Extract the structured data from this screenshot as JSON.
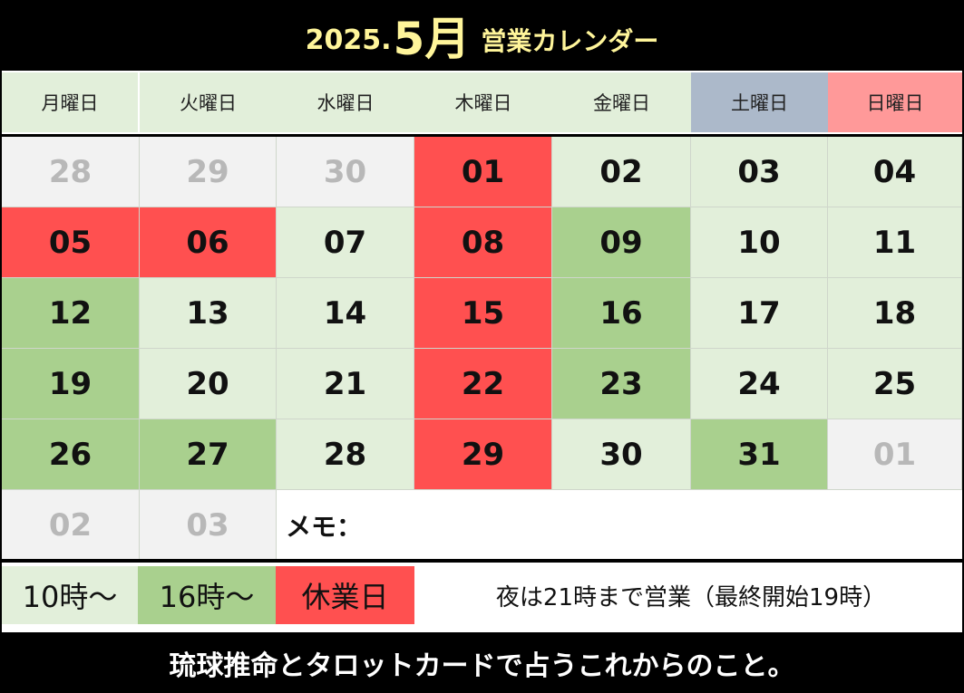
{
  "header": {
    "year": "2025.",
    "month": "5月",
    "subtitle": "営業カレンダー"
  },
  "weekdays": [
    {
      "label": "月曜日",
      "type": "weekday"
    },
    {
      "label": "火曜日",
      "type": "weekday"
    },
    {
      "label": "水曜日",
      "type": "weekday"
    },
    {
      "label": "木曜日",
      "type": "weekday"
    },
    {
      "label": "金曜日",
      "type": "weekday"
    },
    {
      "label": "土曜日",
      "type": "sat"
    },
    {
      "label": "日曜日",
      "type": "sun"
    }
  ],
  "weeks": [
    [
      {
        "day": "28",
        "status": "other"
      },
      {
        "day": "29",
        "status": "other"
      },
      {
        "day": "30",
        "status": "other"
      },
      {
        "day": "01",
        "status": "closed"
      },
      {
        "day": "02",
        "status": "normal"
      },
      {
        "day": "03",
        "status": "normal"
      },
      {
        "day": "04",
        "status": "normal"
      }
    ],
    [
      {
        "day": "05",
        "status": "closed"
      },
      {
        "day": "06",
        "status": "closed"
      },
      {
        "day": "07",
        "status": "normal"
      },
      {
        "day": "08",
        "status": "closed"
      },
      {
        "day": "09",
        "status": "late"
      },
      {
        "day": "10",
        "status": "normal"
      },
      {
        "day": "11",
        "status": "normal"
      }
    ],
    [
      {
        "day": "12",
        "status": "late"
      },
      {
        "day": "13",
        "status": "normal"
      },
      {
        "day": "14",
        "status": "normal"
      },
      {
        "day": "15",
        "status": "closed"
      },
      {
        "day": "16",
        "status": "late"
      },
      {
        "day": "17",
        "status": "normal"
      },
      {
        "day": "18",
        "status": "normal"
      }
    ],
    [
      {
        "day": "19",
        "status": "late"
      },
      {
        "day": "20",
        "status": "normal"
      },
      {
        "day": "21",
        "status": "normal"
      },
      {
        "day": "22",
        "status": "closed"
      },
      {
        "day": "23",
        "status": "late"
      },
      {
        "day": "24",
        "status": "normal"
      },
      {
        "day": "25",
        "status": "normal"
      }
    ],
    [
      {
        "day": "26",
        "status": "late"
      },
      {
        "day": "27",
        "status": "late"
      },
      {
        "day": "28",
        "status": "normal"
      },
      {
        "day": "29",
        "status": "closed"
      },
      {
        "day": "30",
        "status": "normal"
      },
      {
        "day": "31",
        "status": "late"
      },
      {
        "day": "01",
        "status": "other"
      }
    ],
    [
      {
        "day": "02",
        "status": "other"
      },
      {
        "day": "03",
        "status": "other"
      }
    ]
  ],
  "memo_label": "メモ：",
  "legend": [
    {
      "label": "10時～",
      "status": "normal"
    },
    {
      "label": "16時～",
      "status": "late"
    },
    {
      "label": "休業日",
      "status": "closed"
    }
  ],
  "note": "夜は21時まで営業（最終開始19時）",
  "footer": "琉球推命とタロットカードで占うこれからのこと。",
  "colors": {
    "normal": "#e2efda",
    "late": "#a9d08e",
    "closed": "#ff5050",
    "other": "#f2f2f2",
    "saturday": "#acb9ca",
    "sunday": "#ff9999",
    "title": "#fff59a"
  }
}
